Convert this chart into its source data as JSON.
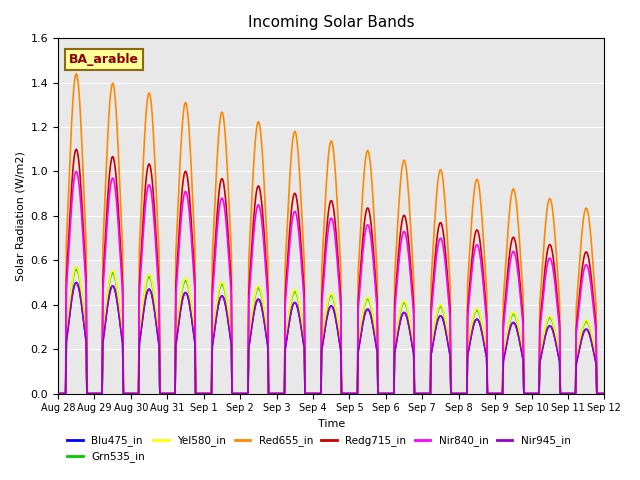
{
  "title": "Incoming Solar Bands",
  "xlabel": "Time",
  "ylabel": "Solar Radiation (W/m2)",
  "annotation": "BA_arable",
  "ylim": [
    0,
    1.6
  ],
  "background_color": "#e8e8e8",
  "series": {
    "Blu475_in": {
      "color": "#0000ff",
      "lw": 1.2
    },
    "Grn535_in": {
      "color": "#00cc00",
      "lw": 1.2
    },
    "Yel580_in": {
      "color": "#ffff00",
      "lw": 1.2
    },
    "Red655_in": {
      "color": "#ff8800",
      "lw": 1.2
    },
    "Redg715_in": {
      "color": "#cc0000",
      "lw": 1.2
    },
    "Nir840_in": {
      "color": "#ff00ff",
      "lw": 1.2
    },
    "Nir945_in": {
      "color": "#9900cc",
      "lw": 1.2
    }
  },
  "peak_scale": {
    "Blu475_in": 0.5,
    "Grn535_in": 0.56,
    "Yel580_in": 0.57,
    "Red655_in": 1.44,
    "Redg715_in": 1.1,
    "Nir840_in": 1.0,
    "Nir945_in": 0.5
  },
  "num_days": 15,
  "start_day": 0,
  "x_tick_labels": [
    "Aug 28",
    "Aug 29",
    "Aug 30",
    "Aug 31",
    "Sep 1",
    "Sep 2",
    "Sep 3",
    "Sep 4",
    "Sep 5",
    "Sep 6",
    "Sep 7",
    "Sep 8",
    "Sep 9",
    "Sep 10",
    "Sep 11",
    "Sep 12"
  ],
  "x_tick_positions": [
    0,
    1,
    2,
    3,
    4,
    5,
    6,
    7,
    8,
    9,
    10,
    11,
    12,
    13,
    14,
    15
  ]
}
